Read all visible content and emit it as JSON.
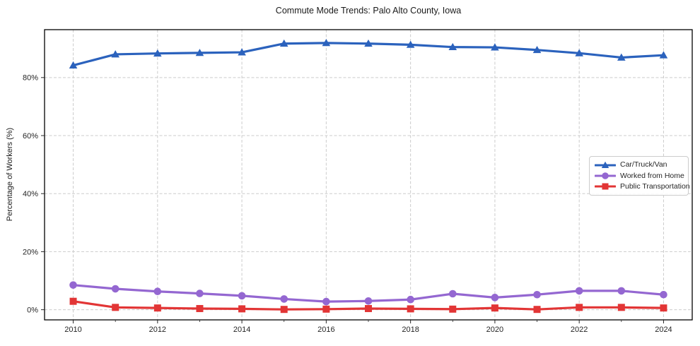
{
  "chart_data": {
    "type": "line",
    "title": "Commute Mode Trends: Palo Alto County, Iowa",
    "xlabel": "",
    "ylabel": "Percentage of Workers (%)",
    "x": [
      2010,
      2011,
      2012,
      2013,
      2014,
      2015,
      2016,
      2017,
      2018,
      2019,
      2020,
      2021,
      2022,
      2023,
      2024
    ],
    "series": [
      {
        "name": "Car/Truck/Van",
        "color": "#2b62bd",
        "marker": "triangle",
        "values": [
          84.2,
          88.0,
          88.3,
          88.5,
          88.7,
          91.7,
          91.9,
          91.7,
          91.3,
          90.5,
          90.4,
          89.5,
          88.4,
          86.9,
          87.7
        ]
      },
      {
        "name": "Worked from Home",
        "color": "#9467d1",
        "marker": "circle",
        "values": [
          8.5,
          7.2,
          6.3,
          5.6,
          4.8,
          3.7,
          2.8,
          3.0,
          3.5,
          5.5,
          4.2,
          5.2,
          6.5,
          6.5,
          5.2
        ]
      },
      {
        "name": "Public Transportation",
        "color": "#e23535",
        "marker": "square",
        "values": [
          2.9,
          0.8,
          0.6,
          0.4,
          0.3,
          0.1,
          0.2,
          0.4,
          0.3,
          0.2,
          0.6,
          0.1,
          0.8,
          0.8,
          0.6
        ]
      }
    ],
    "xlim": [
      2009.32,
      2024.68
    ],
    "ylim": [
      -3.5,
      96.5
    ],
    "y_ticks": [
      0,
      20,
      40,
      60,
      80
    ],
    "y_tick_labels": [
      "0%",
      "20%",
      "40%",
      "60%",
      "80%"
    ],
    "x_major_ticks": [
      2010,
      2012,
      2014,
      2016,
      2018,
      2020,
      2022,
      2024
    ],
    "x_major_tick_labels": [
      "2010",
      "2012",
      "2014",
      "2016",
      "2018",
      "2020",
      "2022",
      "2024"
    ],
    "x_minor_ticks": [
      2011,
      2013,
      2015,
      2017,
      2019,
      2021,
      2023
    ],
    "grid": true,
    "legend_position": "center right",
    "colors": {
      "background": "#ffffff",
      "grid": "#cccccc",
      "spine": "#000000",
      "tick_label": "#262626"
    }
  }
}
